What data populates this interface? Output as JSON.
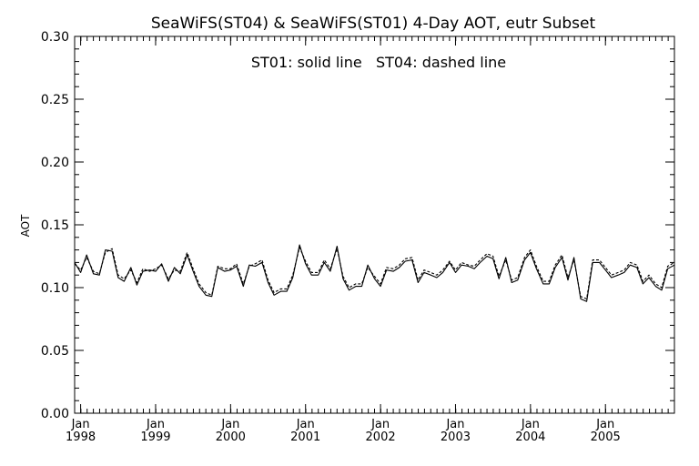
{
  "chart_data": {
    "type": "line",
    "title": "SeaWiFS(ST04) & SeaWiFS(ST01) 4-Day AOT, eutr Subset",
    "annotation": "ST01: solid line   ST04: dashed line",
    "xlabel": "",
    "ylabel": "AOT",
    "ylim": [
      0.0,
      0.3
    ],
    "y_ticks": [
      "0.00",
      "0.05",
      "0.10",
      "0.15",
      "0.20",
      "0.25",
      "0.30"
    ],
    "xlim": [
      1997.92,
      2005.92
    ],
    "x_tick_labels": [
      {
        "month": "Jan",
        "year": "1998"
      },
      {
        "month": "Jan",
        "year": "1999"
      },
      {
        "month": "Jan",
        "year": "2000"
      },
      {
        "month": "Jan",
        "year": "2001"
      },
      {
        "month": "Jan",
        "year": "2002"
      },
      {
        "month": "Jan",
        "year": "2003"
      },
      {
        "month": "Jan",
        "year": "2004"
      },
      {
        "month": "Jan",
        "year": "2005"
      }
    ],
    "grid": false,
    "series": [
      {
        "name": "ST01",
        "style": "solid",
        "x": [
          1997.92,
          1998.0,
          1998.08,
          1998.17,
          1998.25,
          1998.33,
          1998.42,
          1998.5,
          1998.58,
          1998.67,
          1998.75,
          1998.83,
          1998.92,
          1999.0,
          1999.08,
          1999.17,
          1999.25,
          1999.33,
          1999.42,
          1999.5,
          1999.58,
          1999.67,
          1999.75,
          1999.83,
          1999.92,
          2000.0,
          2000.08,
          2000.17,
          2000.25,
          2000.33,
          2000.42,
          2000.5,
          2000.58,
          2000.67,
          2000.75,
          2000.83,
          2000.92,
          2001.0,
          2001.08,
          2001.17,
          2001.25,
          2001.33,
          2001.42,
          2001.5,
          2001.58,
          2001.67,
          2001.75,
          2001.83,
          2001.92,
          2002.0,
          2002.08,
          2002.17,
          2002.25,
          2002.33,
          2002.42,
          2002.5,
          2002.58,
          2002.67,
          2002.75,
          2002.83,
          2002.92,
          2003.0,
          2003.08,
          2003.17,
          2003.25,
          2003.33,
          2003.42,
          2003.5,
          2003.58,
          2003.67,
          2003.75,
          2003.83,
          2003.92,
          2004.0,
          2004.08,
          2004.17,
          2004.25,
          2004.33,
          2004.42,
          2004.5,
          2004.58,
          2004.67,
          2004.75,
          2004.83,
          2004.92,
          2005.0,
          2005.08,
          2005.17,
          2005.25,
          2005.33,
          2005.42,
          2005.5,
          2005.58,
          2005.67,
          2005.75,
          2005.83,
          2005.92
        ],
        "values": [
          0.12,
          0.112,
          0.126,
          0.111,
          0.11,
          0.13,
          0.129,
          0.108,
          0.105,
          0.116,
          0.102,
          0.113,
          0.114,
          0.113,
          0.119,
          0.105,
          0.116,
          0.111,
          0.126,
          0.113,
          0.101,
          0.094,
          0.093,
          0.116,
          0.113,
          0.114,
          0.117,
          0.101,
          0.118,
          0.117,
          0.12,
          0.104,
          0.094,
          0.097,
          0.097,
          0.108,
          0.134,
          0.119,
          0.11,
          0.11,
          0.12,
          0.113,
          0.133,
          0.107,
          0.098,
          0.101,
          0.101,
          0.118,
          0.107,
          0.101,
          0.114,
          0.113,
          0.116,
          0.121,
          0.122,
          0.104,
          0.112,
          0.11,
          0.108,
          0.112,
          0.12,
          0.112,
          0.118,
          0.117,
          0.115,
          0.12,
          0.125,
          0.123,
          0.107,
          0.124,
          0.104,
          0.106,
          0.122,
          0.128,
          0.115,
          0.103,
          0.103,
          0.116,
          0.124,
          0.106,
          0.124,
          0.091,
          0.089,
          0.12,
          0.12,
          0.114,
          0.108,
          0.11,
          0.112,
          0.118,
          0.116,
          0.103,
          0.108,
          0.101,
          0.098,
          0.115,
          0.118
        ]
      },
      {
        "name": "ST04",
        "style": "dashed",
        "x": [
          1997.92,
          1998.0,
          1998.08,
          1998.17,
          1998.25,
          1998.33,
          1998.42,
          1998.5,
          1998.58,
          1998.67,
          1998.75,
          1998.83,
          1998.92,
          1999.0,
          1999.08,
          1999.17,
          1999.25,
          1999.33,
          1999.42,
          1999.5,
          1999.58,
          1999.67,
          1999.75,
          1999.83,
          1999.92,
          2000.0,
          2000.08,
          2000.17,
          2000.25,
          2000.33,
          2000.42,
          2000.5,
          2000.58,
          2000.67,
          2000.75,
          2000.83,
          2000.92,
          2001.0,
          2001.08,
          2001.17,
          2001.25,
          2001.33,
          2001.42,
          2001.5,
          2001.58,
          2001.67,
          2001.75,
          2001.83,
          2001.92,
          2002.0,
          2002.08,
          2002.17,
          2002.25,
          2002.33,
          2002.42,
          2002.5,
          2002.58,
          2002.67,
          2002.75,
          2002.83,
          2002.92,
          2003.0,
          2003.08,
          2003.17,
          2003.25,
          2003.33,
          2003.42,
          2003.5,
          2003.58,
          2003.67,
          2003.75,
          2003.83,
          2003.92,
          2004.0,
          2004.08,
          2004.17,
          2004.25,
          2004.33,
          2004.42,
          2004.5,
          2004.58,
          2004.67,
          2004.75,
          2004.83,
          2004.92,
          2005.0,
          2005.08,
          2005.17,
          2005.25,
          2005.33,
          2005.42,
          2005.5,
          2005.58,
          2005.67,
          2005.75,
          2005.83,
          2005.92
        ],
        "values": [
          0.119,
          0.114,
          0.124,
          0.113,
          0.111,
          0.128,
          0.131,
          0.11,
          0.107,
          0.114,
          0.104,
          0.115,
          0.113,
          0.115,
          0.118,
          0.107,
          0.114,
          0.113,
          0.128,
          0.115,
          0.103,
          0.096,
          0.094,
          0.117,
          0.115,
          0.115,
          0.119,
          0.103,
          0.117,
          0.119,
          0.122,
          0.106,
          0.096,
          0.099,
          0.099,
          0.11,
          0.132,
          0.121,
          0.112,
          0.112,
          0.122,
          0.115,
          0.131,
          0.109,
          0.1,
          0.103,
          0.103,
          0.116,
          0.109,
          0.103,
          0.116,
          0.115,
          0.118,
          0.123,
          0.124,
          0.106,
          0.114,
          0.112,
          0.11,
          0.114,
          0.121,
          0.114,
          0.12,
          0.118,
          0.117,
          0.122,
          0.127,
          0.125,
          0.109,
          0.122,
          0.106,
          0.108,
          0.124,
          0.13,
          0.117,
          0.105,
          0.105,
          0.118,
          0.126,
          0.108,
          0.122,
          0.093,
          0.091,
          0.122,
          0.122,
          0.116,
          0.11,
          0.112,
          0.114,
          0.12,
          0.118,
          0.105,
          0.11,
          0.103,
          0.1,
          0.117,
          0.12
        ]
      }
    ]
  }
}
